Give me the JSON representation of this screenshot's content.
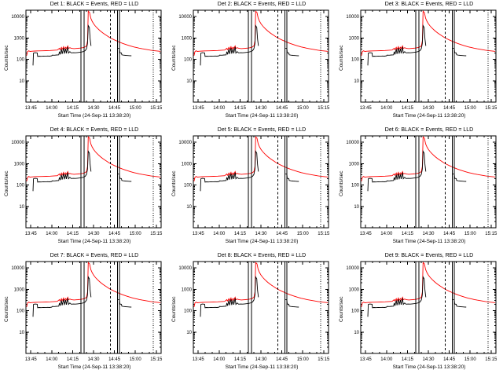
{
  "page": {
    "background": "#ffffff"
  },
  "chart_data": {
    "type": "line",
    "layout": {
      "rows": 3,
      "cols": 3
    },
    "xlabel": "Start Time (24-Sep-11 13:38:20)",
    "ylabel": "Counts/sec",
    "x_unit": "minutes since 13:00",
    "xlim": [
      41.5,
      138.5
    ],
    "ylim_log": [
      1,
      20000
    ],
    "grid": false,
    "xticks": [
      {
        "t": 45,
        "label": "13:45"
      },
      {
        "t": 60,
        "label": "14:00"
      },
      {
        "t": 75,
        "label": "14:15"
      },
      {
        "t": 90,
        "label": "14:30"
      },
      {
        "t": 105,
        "label": "14:45"
      },
      {
        "t": 120,
        "label": "15:00"
      },
      {
        "t": 135,
        "label": "15:15"
      }
    ],
    "yticks": [
      {
        "v": 10,
        "label": "10"
      },
      {
        "v": 100,
        "label": "100"
      },
      {
        "v": 1000,
        "label": "1000"
      },
      {
        "v": 10000,
        "label": "10000"
      }
    ],
    "colors": {
      "events": "#000000",
      "lld": "#ff0000"
    },
    "vlines": [
      {
        "t": 81,
        "style": "solid"
      },
      {
        "t": 83.2,
        "style": "solid"
      },
      {
        "t": 102,
        "style": "dashed"
      },
      {
        "t": 107.2,
        "style": "solid"
      },
      {
        "t": 108.6,
        "style": "solid"
      },
      {
        "t": 132.8,
        "style": "dotted"
      }
    ],
    "series_shared": {
      "lld": [
        [
          42,
          150
        ],
        [
          42.6,
          230
        ],
        [
          43.5,
          252
        ],
        [
          44.5,
          236
        ],
        [
          46,
          242
        ],
        [
          48,
          246
        ],
        [
          50,
          250
        ],
        [
          53,
          252
        ],
        [
          56,
          256
        ],
        [
          59,
          261
        ],
        [
          62,
          268
        ],
        [
          64,
          274
        ],
        [
          65.5,
          330
        ],
        [
          66,
          286
        ],
        [
          67,
          365
        ],
        [
          67.5,
          296
        ],
        [
          68.5,
          395
        ],
        [
          69,
          306
        ],
        [
          70,
          372
        ],
        [
          70.5,
          316
        ],
        [
          71.5,
          425
        ],
        [
          72,
          326
        ],
        [
          73,
          352
        ],
        [
          74,
          332
        ],
        [
          75,
          325
        ],
        [
          76,
          318
        ],
        [
          77.5,
          323
        ],
        [
          79,
          330
        ],
        [
          80.5,
          338
        ],
        [
          82,
          350
        ],
        [
          83,
          364
        ],
        [
          84,
          385
        ],
        [
          85,
          430
        ],
        [
          85.7,
          750
        ],
        [
          86.2,
          18000
        ],
        [
          87.2,
          15500
        ],
        [
          88,
          8500
        ],
        [
          89,
          6100
        ],
        [
          90,
          4700
        ],
        [
          91,
          3850
        ],
        [
          92,
          3250
        ],
        [
          93,
          2780
        ],
        [
          94,
          2400
        ],
        [
          95,
          2100
        ],
        [
          97,
          1660
        ],
        [
          99,
          1350
        ],
        [
          101,
          1120
        ],
        [
          103,
          945
        ],
        [
          105,
          815
        ],
        [
          107,
          710
        ],
        [
          109,
          625
        ],
        [
          111,
          556
        ],
        [
          113,
          500
        ],
        [
          115,
          453
        ],
        [
          117,
          414
        ],
        [
          119,
          382
        ],
        [
          121,
          355
        ],
        [
          123,
          333
        ],
        [
          125,
          314
        ],
        [
          127,
          297
        ],
        [
          129,
          283
        ],
        [
          131,
          270
        ],
        [
          133,
          259
        ],
        [
          135,
          249
        ],
        [
          137,
          241
        ],
        [
          138,
          237
        ]
      ],
      "events_segments": [
        [
          [
            46.6,
            52
          ],
          [
            46.9,
            196
          ],
          [
            48,
            205
          ],
          [
            49.6,
            200
          ],
          [
            49.9,
            138
          ],
          [
            51,
            142
          ],
          [
            52.5,
            139
          ],
          [
            54,
            143
          ],
          [
            55.5,
            140
          ],
          [
            57,
            144
          ],
          [
            58.5,
            141
          ],
          [
            60,
            146
          ],
          [
            60.3,
            158
          ],
          [
            62,
            156
          ],
          [
            63.5,
            160
          ],
          [
            65,
            163
          ],
          [
            65.6,
            232
          ],
          [
            66.1,
            170
          ],
          [
            67,
            305
          ],
          [
            67.5,
            180
          ],
          [
            68.5,
            345
          ],
          [
            69,
            186
          ],
          [
            70,
            315
          ],
          [
            70.5,
            191
          ],
          [
            71.5,
            385
          ],
          [
            72,
            196
          ],
          [
            73,
            232
          ],
          [
            74,
            202
          ],
          [
            75.5,
            206
          ],
          [
            77,
            203
          ],
          [
            78.5,
            208
          ],
          [
            80,
            214
          ],
          [
            81.5,
            222
          ],
          [
            83,
            236
          ],
          [
            84,
            256
          ],
          [
            85,
            320
          ],
          [
            85.7,
            560
          ],
          [
            86.2,
            3800
          ],
          [
            87,
            3100
          ],
          [
            87.6,
            900
          ],
          [
            88.2,
            430
          ]
        ],
        [
          [
            107.6,
            332
          ],
          [
            108.6,
            322
          ],
          [
            108.9,
            206
          ],
          [
            110,
            200
          ],
          [
            110.3,
            163
          ],
          [
            111.5,
            158
          ],
          [
            113,
            154
          ],
          [
            114.5,
            151
          ],
          [
            116,
            149
          ],
          [
            117.2,
            148
          ]
        ]
      ]
    },
    "charts": [
      {
        "title": "Det 1: BLACK = Events, RED = LLD"
      },
      {
        "title": "Det 2: BLACK = Events, RED = LLD"
      },
      {
        "title": "Det 3: BLACK = Events, RED = LLD"
      },
      {
        "title": "Det 4: BLACK = Events, RED = LLD"
      },
      {
        "title": "Det 5: BLACK = Events, RED = LLD"
      },
      {
        "title": "Det 6: BLACK = Events, RED = LLD"
      },
      {
        "title": "Det 7: BLACK = Events, RED = LLD"
      },
      {
        "title": "Det 8: BLACK = Events, RED = LLD"
      },
      {
        "title": "Det 9: BLACK = Events, RED = LLD"
      }
    ]
  }
}
